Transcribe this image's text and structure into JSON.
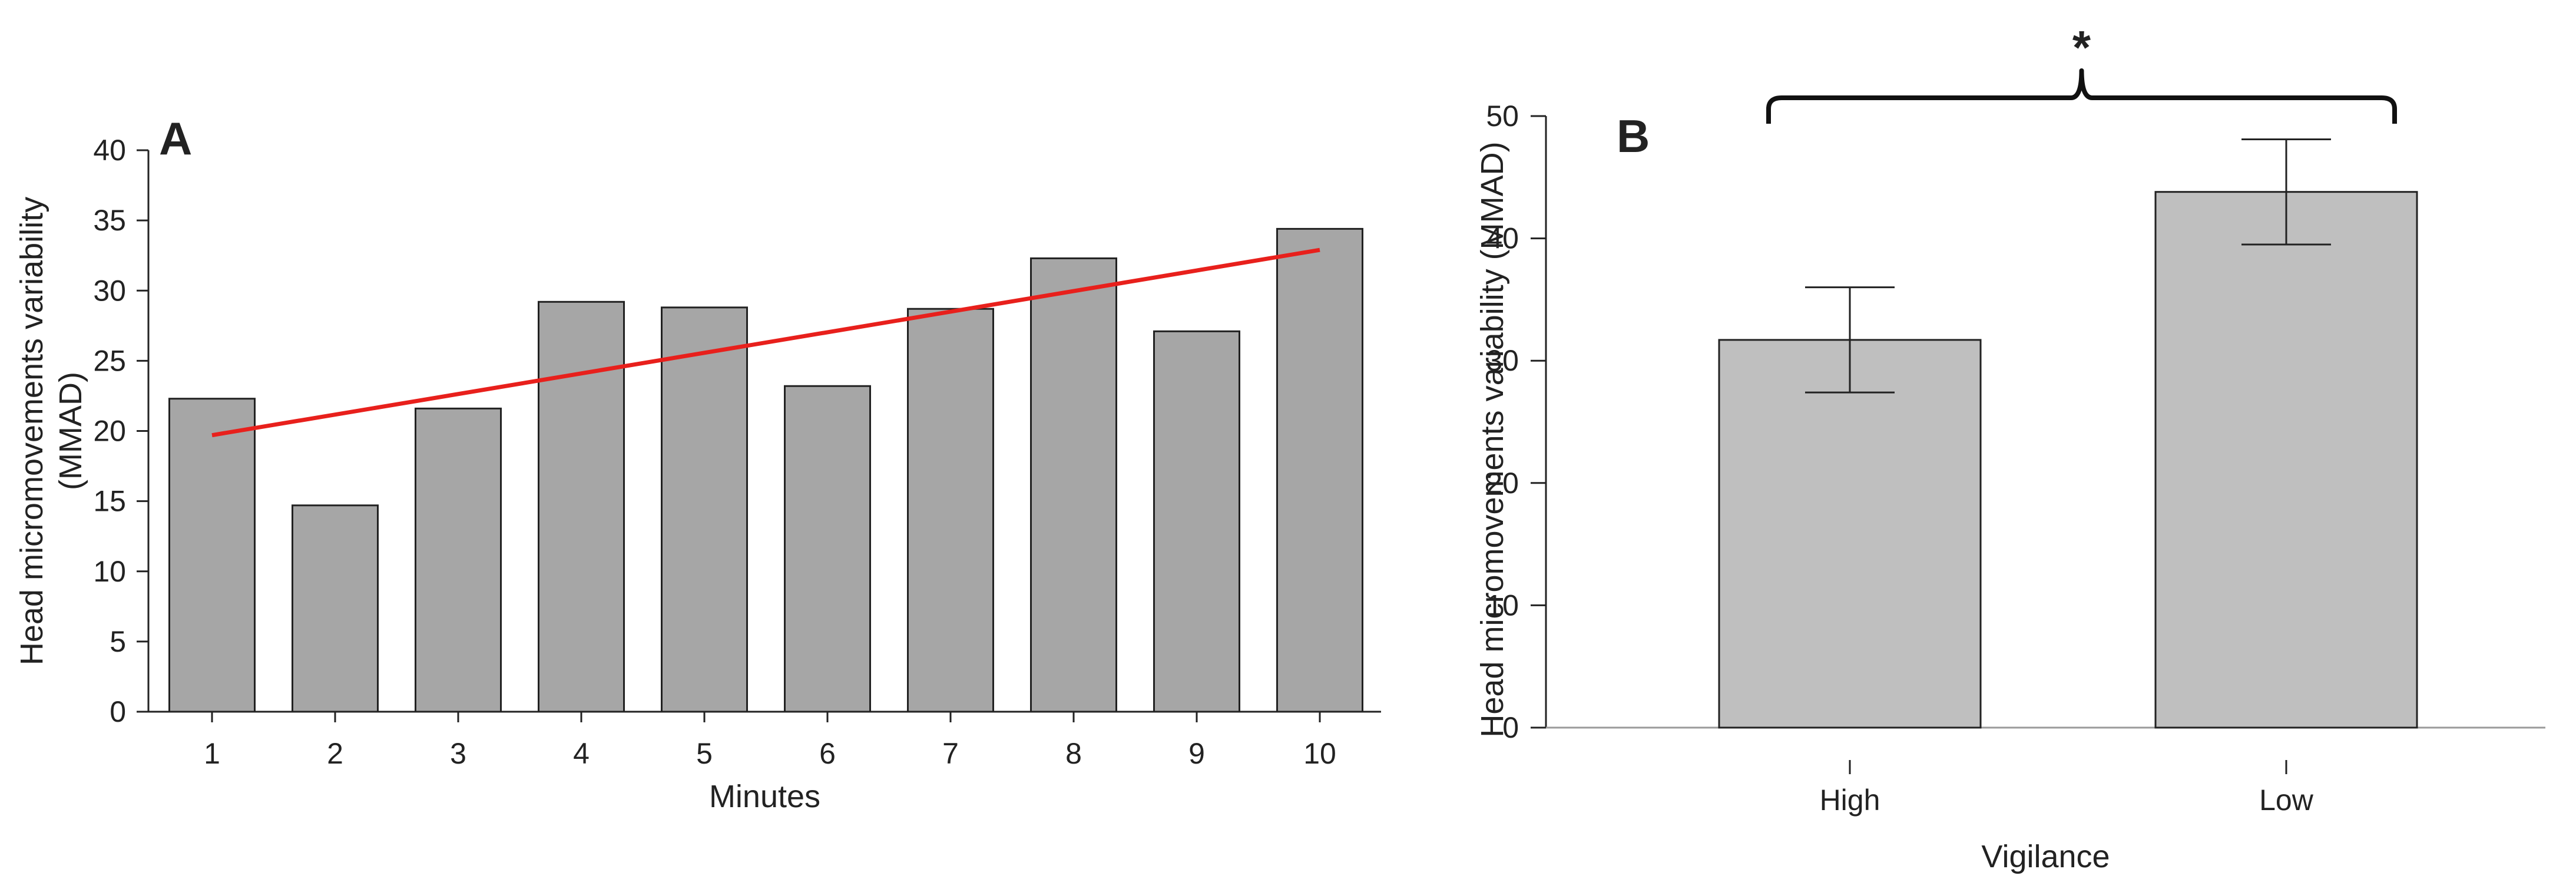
{
  "chart_data": [
    {
      "panel": "A",
      "type": "bar",
      "title": "",
      "xlabel": "Minutes",
      "ylabel_lines": [
        "Head micromovements variability",
        "(MMAD)"
      ],
      "categories": [
        "1",
        "2",
        "3",
        "4",
        "5",
        "6",
        "7",
        "8",
        "9",
        "10"
      ],
      "values": [
        22.3,
        14.7,
        21.6,
        29.2,
        28.8,
        23.2,
        28.7,
        32.3,
        27.1,
        34.4
      ],
      "ylim": [
        0,
        40
      ],
      "yticks": [
        0,
        5,
        10,
        15,
        20,
        25,
        30,
        35,
        40
      ],
      "trendline": {
        "start": [
          1,
          19.7
        ],
        "end": [
          10,
          32.9
        ],
        "color": "#e8201c"
      },
      "bar_color": "#a6a6a6",
      "grid": false
    },
    {
      "panel": "B",
      "type": "bar",
      "title": "",
      "xlabel": "Vigilance",
      "ylabel": "Head micromovements variability (MMAD)",
      "categories": [
        "High",
        "Low"
      ],
      "values": [
        31.7,
        43.8
      ],
      "error": [
        {
          "low": 27.4,
          "high": 36.0
        },
        {
          "low": 39.5,
          "high": 48.1
        }
      ],
      "ylim": [
        0,
        50
      ],
      "yticks": [
        0,
        10,
        20,
        30,
        40,
        50
      ],
      "significance": "*",
      "bar_color": "#bfbfbf",
      "grid": false
    }
  ]
}
